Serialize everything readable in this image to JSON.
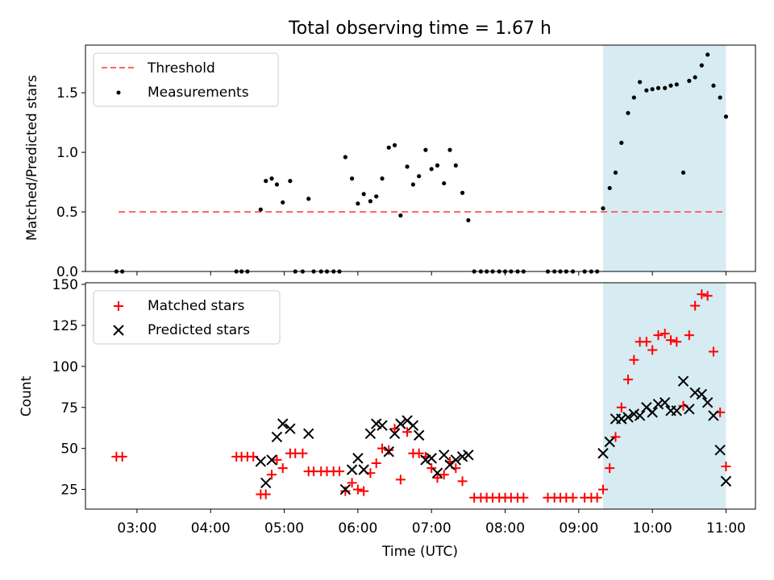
{
  "title": "Total observing time = 1.67 h",
  "colors": {
    "threshold": "#ff6666",
    "measurement": "#000000",
    "matched": "#ff0000",
    "predicted": "#000000",
    "highlight": "#add8e6"
  },
  "chart_data": [
    {
      "type": "scatter",
      "panel": "top",
      "title": "Total observing time = 1.67 h",
      "xlabel": "",
      "ylabel": "Matched/Predicted stars",
      "x_units": "hours UTC",
      "xlim": [
        2.3,
        11.4
      ],
      "ylim": [
        0,
        1.9
      ],
      "yticks": [
        0.0,
        0.5,
        1.0,
        1.5
      ],
      "ytick_labels": [
        "0.0",
        "0.5",
        "1.0",
        "1.5"
      ],
      "legend": {
        "placement": "top-left",
        "entries": [
          "Threshold",
          "Measurements"
        ]
      },
      "highlight_span": [
        9.33,
        11.0
      ],
      "threshold": {
        "name": "Threshold",
        "y": 0.5,
        "x": [
          2.75,
          11.0
        ]
      },
      "series": [
        {
          "name": "Measurements",
          "marker": "dot",
          "points": [
            [
              2.72,
              0
            ],
            [
              2.8,
              0
            ],
            [
              4.35,
              0
            ],
            [
              4.42,
              0
            ],
            [
              4.5,
              0
            ],
            [
              4.68,
              0.52
            ],
            [
              4.75,
              0.76
            ],
            [
              4.83,
              0.78
            ],
            [
              4.9,
              0.73
            ],
            [
              4.98,
              0.58
            ],
            [
              5.08,
              0.76
            ],
            [
              5.15,
              0
            ],
            [
              5.25,
              0
            ],
            [
              5.33,
              0.61
            ],
            [
              5.4,
              0
            ],
            [
              5.5,
              0
            ],
            [
              5.58,
              0
            ],
            [
              5.67,
              0
            ],
            [
              5.75,
              0
            ],
            [
              5.83,
              0.96
            ],
            [
              5.92,
              0.78
            ],
            [
              6.0,
              0.57
            ],
            [
              6.08,
              0.65
            ],
            [
              6.17,
              0.59
            ],
            [
              6.25,
              0.63
            ],
            [
              6.33,
              0.78
            ],
            [
              6.42,
              1.04
            ],
            [
              6.5,
              1.06
            ],
            [
              6.58,
              0.47
            ],
            [
              6.67,
              0.88
            ],
            [
              6.75,
              0.73
            ],
            [
              6.83,
              0.8
            ],
            [
              6.92,
              1.02
            ],
            [
              7.0,
              0.86
            ],
            [
              7.08,
              0.89
            ],
            [
              7.17,
              0.74
            ],
            [
              7.25,
              1.02
            ],
            [
              7.33,
              0.89
            ],
            [
              7.42,
              0.66
            ],
            [
              7.5,
              0.43
            ],
            [
              7.58,
              0
            ],
            [
              7.67,
              0
            ],
            [
              7.75,
              0
            ],
            [
              7.83,
              0
            ],
            [
              7.92,
              0
            ],
            [
              8.0,
              0
            ],
            [
              8.08,
              0
            ],
            [
              8.17,
              0
            ],
            [
              8.25,
              0
            ],
            [
              8.58,
              0
            ],
            [
              8.67,
              0
            ],
            [
              8.75,
              0
            ],
            [
              8.83,
              0
            ],
            [
              8.92,
              0
            ],
            [
              9.08,
              0
            ],
            [
              9.17,
              0
            ],
            [
              9.25,
              0
            ],
            [
              9.33,
              0.53
            ],
            [
              9.42,
              0.7
            ],
            [
              9.5,
              0.83
            ],
            [
              9.58,
              1.08
            ],
            [
              9.67,
              1.33
            ],
            [
              9.75,
              1.46
            ],
            [
              9.83,
              1.59
            ],
            [
              9.92,
              1.52
            ],
            [
              10.0,
              1.53
            ],
            [
              10.08,
              1.54
            ],
            [
              10.17,
              1.54
            ],
            [
              10.25,
              1.56
            ],
            [
              10.33,
              1.57
            ],
            [
              10.42,
              0.83
            ],
            [
              10.5,
              1.6
            ],
            [
              10.58,
              1.63
            ],
            [
              10.67,
              1.73
            ],
            [
              10.75,
              1.82
            ],
            [
              10.83,
              1.56
            ],
            [
              10.92,
              1.46
            ],
            [
              11.0,
              1.3
            ]
          ]
        }
      ]
    },
    {
      "type": "scatter",
      "panel": "bottom",
      "xlabel": "Time (UTC)",
      "ylabel": "Count",
      "x_units": "hours UTC",
      "xlim": [
        2.3,
        11.4
      ],
      "ylim": [
        13,
        151
      ],
      "xticks": [
        3,
        4,
        5,
        6,
        7,
        8,
        9,
        10,
        11
      ],
      "xtick_labels": [
        "03:00",
        "04:00",
        "05:00",
        "06:00",
        "07:00",
        "08:00",
        "09:00",
        "10:00",
        "11:00"
      ],
      "yticks": [
        25,
        50,
        75,
        100,
        125,
        150
      ],
      "ytick_labels": [
        "25",
        "50",
        "75",
        "100",
        "125",
        "150"
      ],
      "legend": {
        "placement": "top-left",
        "entries": [
          "Matched stars",
          "Predicted stars"
        ]
      },
      "highlight_span": [
        9.33,
        11.0
      ],
      "series": [
        {
          "name": "Matched stars",
          "marker": "plus",
          "points": [
            [
              2.72,
              45
            ],
            [
              2.8,
              45
            ],
            [
              4.35,
              45
            ],
            [
              4.42,
              45
            ],
            [
              4.5,
              45
            ],
            [
              4.58,
              45
            ],
            [
              4.68,
              22
            ],
            [
              4.75,
              22
            ],
            [
              4.83,
              34
            ],
            [
              4.9,
              43
            ],
            [
              4.98,
              38
            ],
            [
              5.08,
              47
            ],
            [
              5.15,
              47
            ],
            [
              5.25,
              47
            ],
            [
              5.33,
              36
            ],
            [
              5.4,
              36
            ],
            [
              5.5,
              36
            ],
            [
              5.58,
              36
            ],
            [
              5.67,
              36
            ],
            [
              5.75,
              36
            ],
            [
              5.83,
              24
            ],
            [
              5.92,
              29
            ],
            [
              6.0,
              25
            ],
            [
              6.08,
              24
            ],
            [
              6.17,
              35
            ],
            [
              6.25,
              41
            ],
            [
              6.33,
              50
            ],
            [
              6.42,
              49
            ],
            [
              6.5,
              62
            ],
            [
              6.58,
              31
            ],
            [
              6.67,
              60
            ],
            [
              6.75,
              47
            ],
            [
              6.83,
              47
            ],
            [
              6.92,
              45
            ],
            [
              7.0,
              38
            ],
            [
              7.08,
              32
            ],
            [
              7.17,
              34
            ],
            [
              7.25,
              42
            ],
            [
              7.33,
              38
            ],
            [
              7.42,
              30
            ],
            [
              7.58,
              20
            ],
            [
              7.67,
              20
            ],
            [
              7.75,
              20
            ],
            [
              7.83,
              20
            ],
            [
              7.92,
              20
            ],
            [
              8.0,
              20
            ],
            [
              8.08,
              20
            ],
            [
              8.17,
              20
            ],
            [
              8.25,
              20
            ],
            [
              8.58,
              20
            ],
            [
              8.67,
              20
            ],
            [
              8.75,
              20
            ],
            [
              8.83,
              20
            ],
            [
              8.92,
              20
            ],
            [
              9.08,
              20
            ],
            [
              9.17,
              20
            ],
            [
              9.25,
              20
            ],
            [
              9.33,
              25
            ],
            [
              9.42,
              38
            ],
            [
              9.5,
              57
            ],
            [
              9.58,
              75
            ],
            [
              9.67,
              92
            ],
            [
              9.75,
              104
            ],
            [
              9.83,
              115
            ],
            [
              9.92,
              115
            ],
            [
              10.0,
              110
            ],
            [
              10.08,
              119
            ],
            [
              10.17,
              120
            ],
            [
              10.25,
              116
            ],
            [
              10.33,
              115
            ],
            [
              10.42,
              76
            ],
            [
              10.5,
              119
            ],
            [
              10.58,
              137
            ],
            [
              10.67,
              144
            ],
            [
              10.75,
              143
            ],
            [
              10.83,
              109
            ],
            [
              10.92,
              72
            ],
            [
              11.0,
              39
            ]
          ]
        },
        {
          "name": "Predicted stars",
          "marker": "x",
          "points": [
            [
              4.68,
              42
            ],
            [
              4.75,
              29
            ],
            [
              4.83,
              43
            ],
            [
              4.9,
              57
            ],
            [
              4.98,
              65
            ],
            [
              5.08,
              62
            ],
            [
              5.33,
              59
            ],
            [
              5.83,
              25
            ],
            [
              5.92,
              37
            ],
            [
              6.0,
              44
            ],
            [
              6.08,
              37
            ],
            [
              6.17,
              59
            ],
            [
              6.25,
              65
            ],
            [
              6.33,
              64
            ],
            [
              6.42,
              48
            ],
            [
              6.5,
              59
            ],
            [
              6.58,
              65
            ],
            [
              6.67,
              67
            ],
            [
              6.75,
              64
            ],
            [
              6.83,
              58
            ],
            [
              6.92,
              43
            ],
            [
              7.0,
              44
            ],
            [
              7.08,
              35
            ],
            [
              7.17,
              46
            ],
            [
              7.25,
              40
            ],
            [
              7.33,
              43
            ],
            [
              7.42,
              45
            ],
            [
              7.5,
              46
            ],
            [
              9.33,
              47
            ],
            [
              9.42,
              54
            ],
            [
              9.5,
              68
            ],
            [
              9.58,
              68
            ],
            [
              9.67,
              69
            ],
            [
              9.75,
              71
            ],
            [
              9.83,
              70
            ],
            [
              9.92,
              75
            ],
            [
              10.0,
              72
            ],
            [
              10.08,
              77
            ],
            [
              10.17,
              78
            ],
            [
              10.25,
              73
            ],
            [
              10.33,
              73
            ],
            [
              10.42,
              91
            ],
            [
              10.5,
              74
            ],
            [
              10.58,
              84
            ],
            [
              10.67,
              83
            ],
            [
              10.75,
              78
            ],
            [
              10.83,
              70
            ],
            [
              10.92,
              49
            ],
            [
              11.0,
              30
            ]
          ]
        }
      ]
    }
  ]
}
